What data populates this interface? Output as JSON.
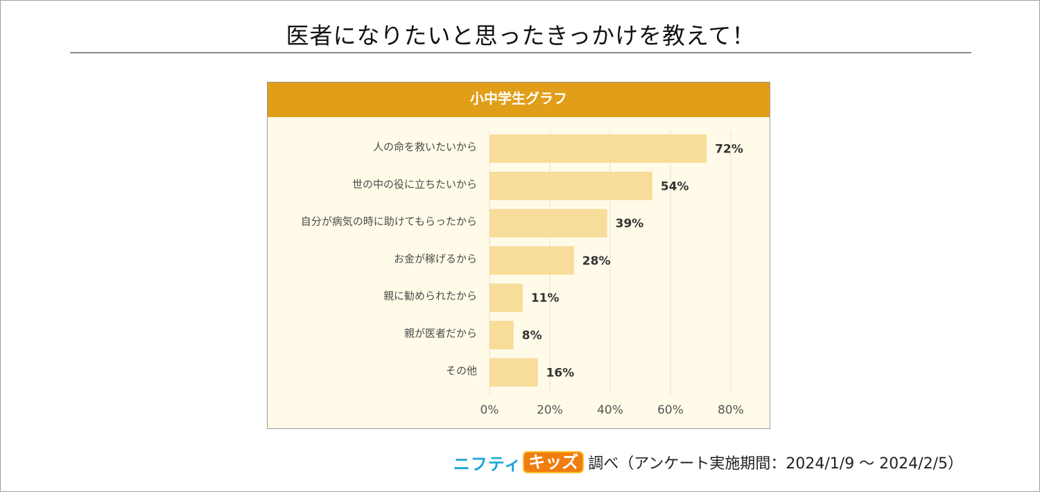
{
  "page_title": "医者になりたいと思ったきっかけを教えて！",
  "chart_data": {
    "type": "bar",
    "orientation": "horizontal",
    "title": "小中学生グラフ",
    "categories": [
      "人の命を救いたいから",
      "世の中の役に立ちたいから",
      "自分が病気の時に助けてもらったから",
      "お金が稼げるから",
      "親に勧められたから",
      "親が医者だから",
      "その他"
    ],
    "values": [
      72,
      54,
      39,
      28,
      11,
      8,
      16
    ],
    "value_labels": [
      "72%",
      "54%",
      "39%",
      "28%",
      "11%",
      "8%",
      "16%"
    ],
    "xlim": [
      0,
      80
    ],
    "x_ticks": [
      0,
      20,
      40,
      60,
      80
    ],
    "x_tick_labels": [
      "0%",
      "20%",
      "40%",
      "60%",
      "80%"
    ],
    "xlabel": "",
    "ylabel": "",
    "grid": true
  },
  "colors": {
    "header": "#e19e19",
    "bar": "#f8dc9a",
    "panel_bg": "#fffbe8",
    "gridline": "#e4e0d2",
    "label_text": "#4a4a4a",
    "value_text": "#333333"
  },
  "footer": {
    "logo_nifty": "ニフティ",
    "logo_kids": "キッズ",
    "source_text": "調べ（アンケート実施期間：2024/1/9 ～ 2024/2/5）"
  }
}
